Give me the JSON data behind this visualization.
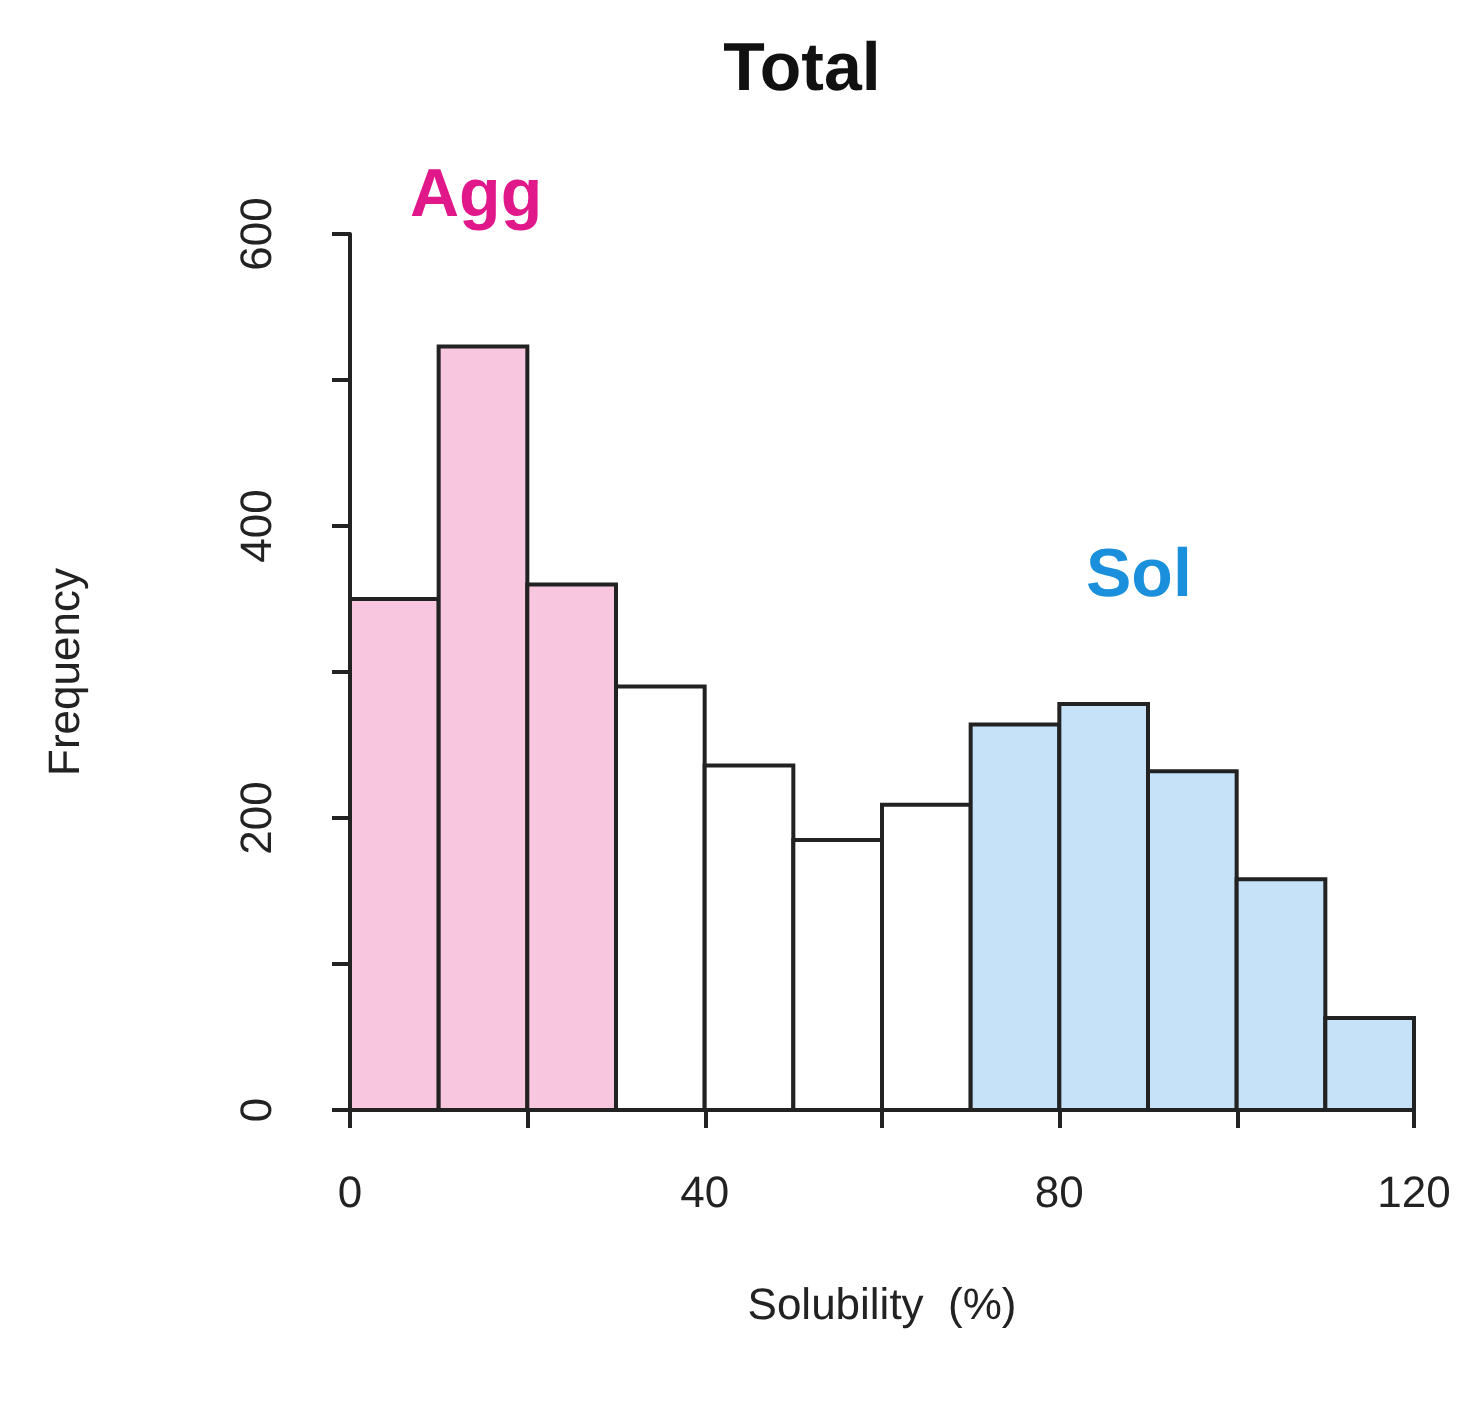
{
  "chart_data": {
    "type": "histogram",
    "title": "Total",
    "xlabel": "Solubility  (%)",
    "ylabel": "Frequency",
    "bins": [
      0,
      10,
      20,
      30,
      40,
      50,
      60,
      70,
      80,
      90,
      100,
      110,
      120
    ],
    "values": [
      350,
      523,
      360,
      290,
      236,
      185,
      209,
      264,
      278,
      232,
      158,
      63
    ],
    "colors": [
      "#f9c6df",
      "#f9c6df",
      "#f9c6df",
      "#ffffff",
      "#ffffff",
      "#ffffff",
      "#ffffff",
      "#c6e2f9",
      "#c6e2f9",
      "#c6e2f9",
      "#c6e2f9",
      "#c6e2f9"
    ],
    "annotations": [
      "Agg",
      "Sol"
    ],
    "xlim": [
      0,
      120
    ],
    "xticks": [
      0,
      {
        "value": 20,
        "label": null
      },
      40,
      {
        "value": 60,
        "label": null
      },
      80,
      {
        "value": 100,
        "label": null
      },
      120
    ],
    "ylim": [
      0,
      600
    ],
    "yticks": [
      0,
      {
        "value": 100,
        "label": null
      },
      200,
      {
        "value": 300,
        "label": null
      },
      400,
      {
        "value": 500,
        "label": null
      },
      600
    ],
    "grid": false
  }
}
